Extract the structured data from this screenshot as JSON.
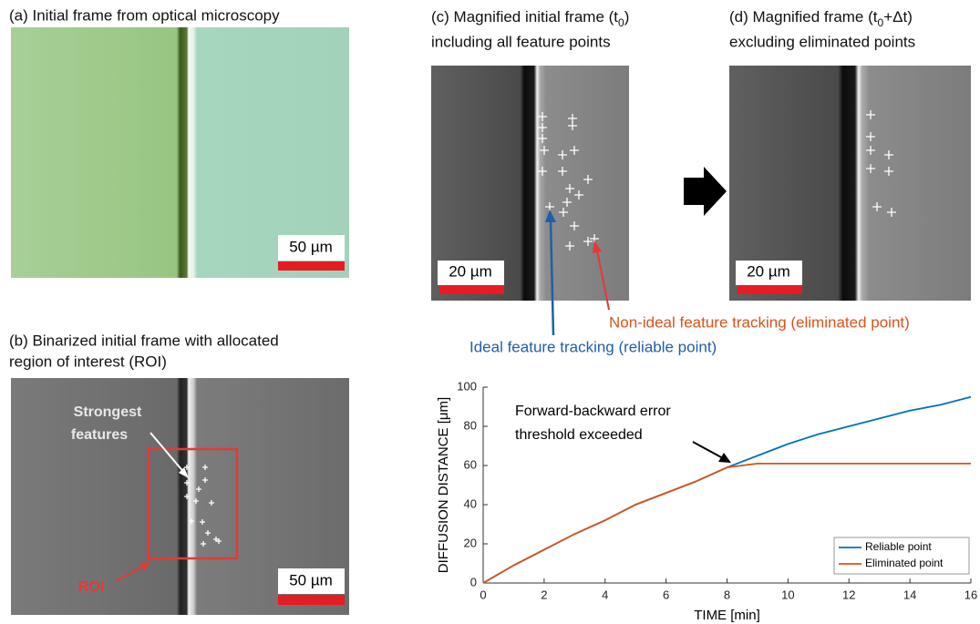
{
  "panels": {
    "a": {
      "title": "(a) Initial frame from optical microscopy",
      "scale_bar": "50 µm"
    },
    "b": {
      "title_lines": [
        "(b) Binarized initial frame with allocated",
        "region of interest (ROI)"
      ],
      "scale_bar": "50 µm",
      "features_label_lines": [
        "Strongest",
        "features"
      ],
      "roi_label": "ROI"
    },
    "c": {
      "title_line1": [
        "(c) Magnified initial frame (t",
        "0",
        ")"
      ],
      "title_line2": "including all feature points",
      "scale_bar": "20 µm"
    },
    "d": {
      "title_line1": [
        "(d) Magnified frame (t",
        "0",
        "+Δt)"
      ],
      "title_line2": "excluding eliminated points",
      "scale_bar": "20 µm"
    }
  },
  "annotations": {
    "non_ideal": "Non-ideal feature tracking (eliminated point)",
    "ideal": "Ideal feature tracking (reliable point)"
  },
  "chart_data": {
    "type": "line",
    "x": [
      0,
      1,
      2,
      3,
      4,
      5,
      6,
      7,
      8,
      9,
      10,
      11,
      12,
      13,
      14,
      15,
      16
    ],
    "series": [
      {
        "name": "Reliable point",
        "color": "#0072bd",
        "values": [
          0,
          9,
          17,
          25,
          32,
          40,
          46,
          52,
          59,
          65,
          71,
          76,
          80,
          84,
          88,
          91,
          95
        ]
      },
      {
        "name": "Eliminated point",
        "color": "#d95319",
        "values": [
          0,
          9,
          17,
          25,
          32,
          40,
          46,
          52,
          59,
          61,
          61,
          61,
          61,
          61,
          61,
          61,
          61
        ]
      }
    ],
    "xlabel": "TIME [min]",
    "ylabel": "DIFFUSION DISTANCE [μm]",
    "annotation_lines": [
      "Forward-backward error",
      "threshold exceeded"
    ],
    "xlim": [
      0,
      16
    ],
    "xticks": [
      0,
      2,
      4,
      6,
      8,
      10,
      12,
      14,
      16
    ],
    "ylim": [
      0,
      100
    ],
    "yticks": [
      0,
      20,
      40,
      60,
      80,
      100
    ],
    "grid": false,
    "legend": "lower right"
  }
}
